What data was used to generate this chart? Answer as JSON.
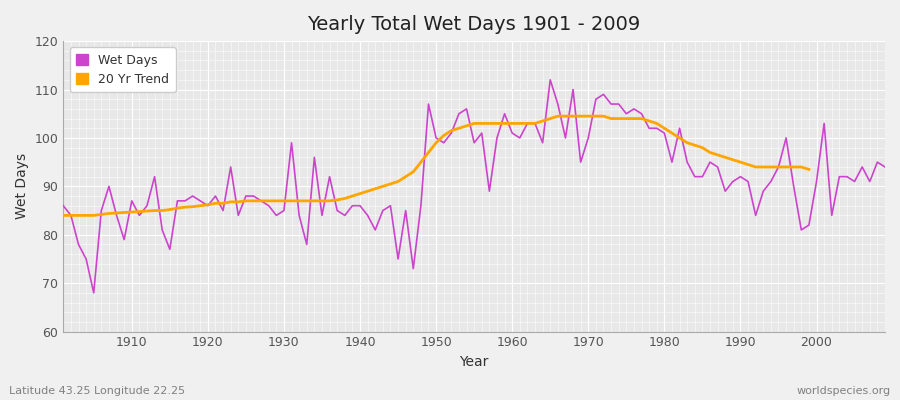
{
  "title": "Yearly Total Wet Days 1901 - 2009",
  "xlabel": "Year",
  "ylabel": "Wet Days",
  "subtitle_left": "Latitude 43.25 Longitude 22.25",
  "subtitle_right": "worldspecies.org",
  "ylim": [
    60,
    120
  ],
  "xlim": [
    1901,
    2009
  ],
  "yticks": [
    60,
    70,
    80,
    90,
    100,
    110,
    120
  ],
  "xticks": [
    1910,
    1920,
    1930,
    1940,
    1950,
    1960,
    1970,
    1980,
    1990,
    2000
  ],
  "wet_days_color": "#CC44CC",
  "trend_color": "#FFA500",
  "bg_color": "#F0F0F0",
  "plot_bg_color": "#E8E8E8",
  "grid_color": "#FFFFFF",
  "legend_wet": "Wet Days",
  "legend_trend": "20 Yr Trend",
  "wet_days": {
    "1901": 86,
    "1902": 84,
    "1903": 78,
    "1904": 75,
    "1905": 68,
    "1906": 85,
    "1907": 90,
    "1908": 84,
    "1909": 79,
    "1910": 87,
    "1911": 84,
    "1912": 86,
    "1913": 92,
    "1914": 81,
    "1915": 77,
    "1916": 87,
    "1917": 87,
    "1918": 88,
    "1919": 87,
    "1920": 86,
    "1921": 88,
    "1922": 85,
    "1923": 94,
    "1924": 84,
    "1925": 88,
    "1926": 88,
    "1927": 87,
    "1928": 86,
    "1929": 84,
    "1930": 85,
    "1931": 99,
    "1932": 84,
    "1933": 78,
    "1934": 96,
    "1935": 84,
    "1936": 92,
    "1937": 85,
    "1938": 84,
    "1939": 86,
    "1940": 86,
    "1941": 84,
    "1942": 81,
    "1943": 85,
    "1944": 86,
    "1945": 75,
    "1946": 85,
    "1947": 73,
    "1948": 86,
    "1949": 107,
    "1950": 100,
    "1951": 99,
    "1952": 101,
    "1953": 105,
    "1954": 106,
    "1955": 99,
    "1956": 101,
    "1957": 89,
    "1958": 100,
    "1959": 105,
    "1960": 101,
    "1961": 100,
    "1962": 103,
    "1963": 103,
    "1964": 99,
    "1965": 112,
    "1966": 107,
    "1967": 100,
    "1968": 110,
    "1969": 95,
    "1970": 100,
    "1971": 108,
    "1972": 109,
    "1973": 107,
    "1974": 107,
    "1975": 105,
    "1976": 106,
    "1977": 105,
    "1978": 102,
    "1979": 102,
    "1980": 101,
    "1981": 95,
    "1982": 102,
    "1983": 95,
    "1984": 92,
    "1985": 92,
    "1986": 95,
    "1987": 94,
    "1988": 89,
    "1989": 91,
    "1990": 92,
    "1991": 91,
    "1992": 84,
    "1993": 89,
    "1994": 91,
    "1995": 94,
    "1996": 100,
    "1997": 90,
    "1998": 81,
    "1999": 82,
    "2000": 91,
    "2001": 103,
    "2002": 84,
    "2003": 92,
    "2004": 92,
    "2005": 91,
    "2006": 94,
    "2007": 91,
    "2008": 95,
    "2009": 94
  },
  "trend_20yr": {
    "1901": 84.0,
    "1902": 84.0,
    "1903": 84.0,
    "1904": 84.0,
    "1905": 84.0,
    "1906": 84.2,
    "1907": 84.4,
    "1908": 84.5,
    "1909": 84.6,
    "1910": 84.7,
    "1911": 84.8,
    "1912": 84.9,
    "1913": 85.0,
    "1914": 85.0,
    "1915": 85.2,
    "1916": 85.5,
    "1917": 85.7,
    "1918": 85.8,
    "1919": 86.0,
    "1920": 86.2,
    "1921": 86.5,
    "1922": 86.5,
    "1923": 86.8,
    "1924": 86.8,
    "1925": 87.0,
    "1926": 87.0,
    "1927": 87.0,
    "1928": 87.0,
    "1929": 87.0,
    "1930": 87.0,
    "1931": 87.0,
    "1932": 87.0,
    "1933": 87.0,
    "1934": 87.0,
    "1935": 87.0,
    "1936": 87.0,
    "1937": 87.2,
    "1938": 87.5,
    "1939": 88.0,
    "1940": 88.5,
    "1941": 89.0,
    "1942": 89.5,
    "1943": 90.0,
    "1944": 90.5,
    "1945": 91.0,
    "1946": 92.0,
    "1947": 93.0,
    "1948": 95.0,
    "1949": 97.0,
    "1950": 99.0,
    "1951": 100.5,
    "1952": 101.5,
    "1953": 102.0,
    "1954": 102.5,
    "1955": 103.0,
    "1956": 103.0,
    "1957": 103.0,
    "1958": 103.0,
    "1959": 103.0,
    "1960": 103.0,
    "1961": 103.0,
    "1962": 103.0,
    "1963": 103.0,
    "1964": 103.5,
    "1965": 104.0,
    "1966": 104.5,
    "1967": 104.5,
    "1968": 104.5,
    "1969": 104.5,
    "1970": 104.5,
    "1971": 104.5,
    "1972": 104.5,
    "1973": 104.0,
    "1974": 104.0,
    "1975": 104.0,
    "1976": 104.0,
    "1977": 104.0,
    "1978": 103.5,
    "1979": 103.0,
    "1980": 102.0,
    "1981": 101.0,
    "1982": 100.0,
    "1983": 99.0,
    "1984": 98.5,
    "1985": 98.0,
    "1986": 97.0,
    "1987": 96.5,
    "1988": 96.0,
    "1989": 95.5,
    "1990": 95.0,
    "1991": 94.5,
    "1992": 94.0,
    "1993": 94.0,
    "1994": 94.0,
    "1995": 94.0,
    "1996": 94.0,
    "1997": 94.0,
    "1998": 94.0,
    "1999": 93.5
  }
}
